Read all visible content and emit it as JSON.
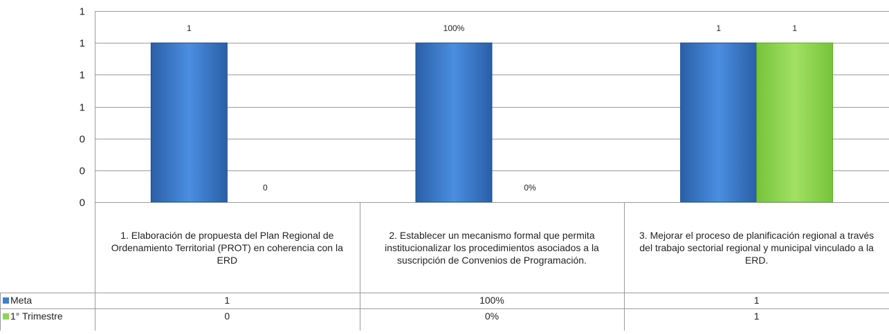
{
  "chart_data": {
    "type": "bar",
    "title": "",
    "categories": [
      "1. Elaboración de propuesta del Plan Regional de Ordenamiento Territorial (PROT) en coherencia con la ERD",
      "2. Establecer un mecanismo formal que permita institucionalizar los procedimientos asociados a la suscripción de Convenios de Programación.",
      "3. Mejorar el proceso de planificación regional a través del trabajo sectorial regional y municipal vinculado a la ERD."
    ],
    "series": [
      {
        "name": "Meta",
        "values": [
          1,
          1,
          1
        ],
        "labels": [
          "1",
          "100%",
          "1"
        ],
        "color": "#3f7fcf"
      },
      {
        "name": "1° Trimestre",
        "values": [
          0,
          0,
          1
        ],
        "labels": [
          "0",
          "0%",
          "1"
        ],
        "color": "#8fd74a"
      }
    ],
    "y_tick_labels": [
      "0",
      "0",
      "0",
      "1",
      "1",
      "1",
      "1"
    ],
    "ylim": [
      0,
      1.2
    ],
    "grid": true,
    "legend": "data-table"
  }
}
